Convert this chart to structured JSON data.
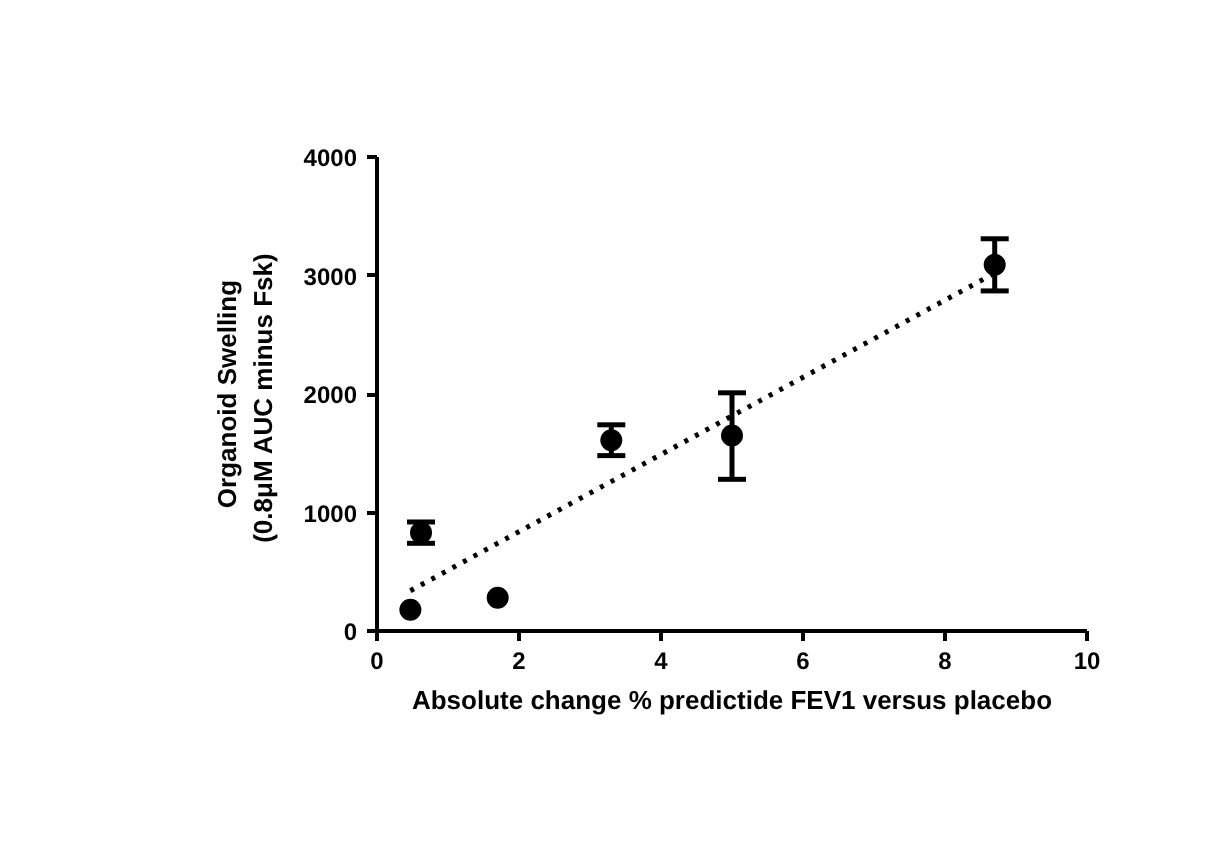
{
  "chart_data": {
    "type": "scatter",
    "xlabel": "Absolute change % predictide FEV1 versus placebo",
    "ylabel": "Organoid Swelling\n(0.8μM  AUC minus Fsk)",
    "x": [
      0.47,
      0.62,
      1.7,
      3.3,
      5.0,
      8.7
    ],
    "series": [
      {
        "color": "#000000",
        "values": [
          180,
          830,
          280,
          1610,
          1650,
          3090
        ],
        "errors": [
          null,
          90,
          null,
          130,
          [
            1280,
            2010
          ],
          [
            2870,
            3310
          ]
        ]
      },
      {
        "type": "line",
        "color": "#000000",
        "x": [
          0.47,
          8.7
        ],
        "values": [
          340,
          3020
        ],
        "line_style": "dotted",
        "marker": "none"
      }
    ],
    "xlim": [
      0,
      10
    ],
    "ylim": [
      0,
      4000
    ],
    "xticks": [
      0,
      2,
      4,
      6,
      8,
      10
    ],
    "yticks": [
      0,
      1000,
      2000,
      3000,
      4000
    ],
    "grid": false,
    "marker": "circle"
  }
}
